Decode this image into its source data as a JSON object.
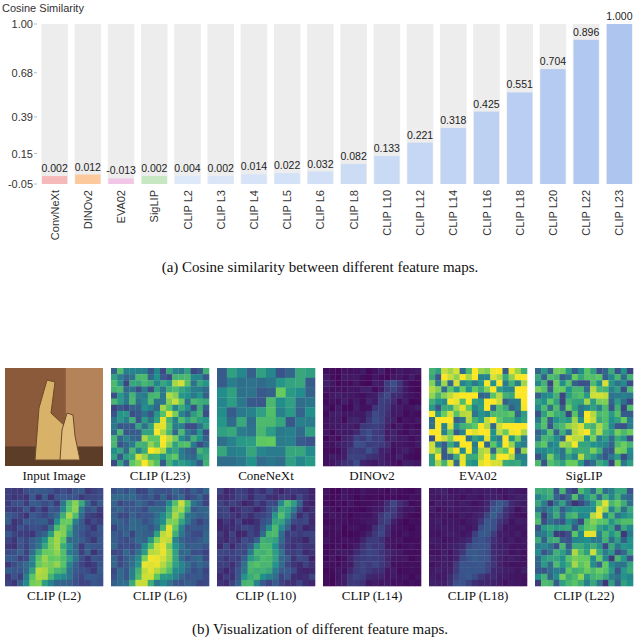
{
  "chart_data": {
    "type": "bar",
    "title": "(a) Cosine similarity between different feature maps.",
    "ylabel": "Cosine Similarity",
    "categories": [
      "ConvNeXt",
      "DINOv2",
      "EVA02",
      "SigLIP",
      "CLIP L2",
      "CLIP L3",
      "CLIP L4",
      "CLIP L5",
      "CLIP L6",
      "CLIP L8",
      "CLIP L10",
      "CLIP L12",
      "CLIP L14",
      "CLIP L16",
      "CLIP L18",
      "CLIP L20",
      "CLIP L22",
      "CLIP L23"
    ],
    "values": [
      0.002,
      0.012,
      -0.013,
      0.002,
      0.004,
      0.002,
      0.014,
      0.022,
      0.032,
      0.082,
      0.133,
      0.221,
      0.318,
      0.425,
      0.551,
      0.704,
      0.896,
      1.0
    ],
    "value_labels": [
      "0.002",
      "0.012",
      "-0.013",
      "0.002",
      "0.004",
      "0.002",
      "0.014",
      "0.022",
      "0.032",
      "0.082",
      "0.133",
      "0.221",
      "0.318",
      "0.425",
      "0.551",
      "0.704",
      "0.896",
      "1.000"
    ],
    "colors": [
      "#f6b9b9",
      "#fbc99b",
      "#f2c6e6",
      "#c6e7c1",
      "#dde8f8",
      "#dae6f8",
      "#d7e4f7",
      "#d4e2f7",
      "#d1e0f6",
      "#cddcf5",
      "#c9daf5",
      "#c5d7f4",
      "#c1d4f3",
      "#bdd1f2",
      "#b9cef2",
      "#b5cbf1",
      "#b1c8f0",
      "#adc5ef"
    ],
    "ylim": [
      -0.05,
      1
    ],
    "yticks": [
      -0.05,
      0.15,
      0.39,
      0.68,
      {
        "value": 1,
        "label": "1.00"
      }
    ],
    "data_labels": true,
    "grid": false
  },
  "figure_b": {
    "caption": "(b) Visualization of different feature maps.",
    "panels": [
      "Input Image",
      "CLIP (L23)",
      "ConeNeXt",
      "DINOv2",
      "EVA02",
      "SigLIP",
      "CLIP (L2)",
      "CLIP (L6)",
      "CLIP (L10)",
      "CLIP (L14)",
      "CLIP (L18)",
      "CLIP (L22)"
    ]
  }
}
